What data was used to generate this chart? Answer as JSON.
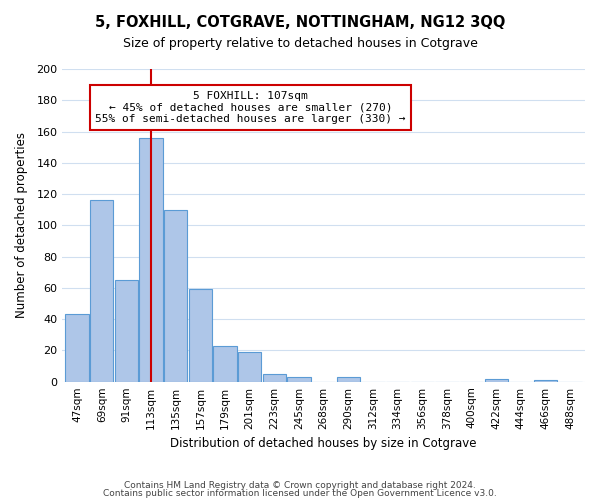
{
  "title": "5, FOXHILL, COTGRAVE, NOTTINGHAM, NG12 3QQ",
  "subtitle": "Size of property relative to detached houses in Cotgrave",
  "xlabel": "Distribution of detached houses by size in Cotgrave",
  "ylabel": "Number of detached properties",
  "bar_labels": [
    "47sqm",
    "69sqm",
    "91sqm",
    "113sqm",
    "135sqm",
    "157sqm",
    "179sqm",
    "201sqm",
    "223sqm",
    "245sqm",
    "268sqm",
    "290sqm",
    "312sqm",
    "334sqm",
    "356sqm",
    "378sqm",
    "400sqm",
    "422sqm",
    "444sqm",
    "466sqm",
    "488sqm"
  ],
  "bar_values": [
    43,
    116,
    65,
    156,
    110,
    59,
    23,
    19,
    5,
    3,
    0,
    3,
    0,
    0,
    0,
    0,
    0,
    2,
    0,
    1,
    0
  ],
  "bar_color": "#aec6e8",
  "bar_edge_color": "#5b9bd5",
  "ylim": [
    0,
    200
  ],
  "yticks": [
    0,
    20,
    40,
    60,
    80,
    100,
    120,
    140,
    160,
    180,
    200
  ],
  "vline_x": 3,
  "vline_color": "#cc0000",
  "annotation_title": "5 FOXHILL: 107sqm",
  "annotation_line1": "← 45% of detached houses are smaller (270)",
  "annotation_line2": "55% of semi-detached houses are larger (330) →",
  "annotation_box_color": "#ffffff",
  "annotation_box_edge": "#cc0000",
  "footer_line1": "Contains HM Land Registry data © Crown copyright and database right 2024.",
  "footer_line2": "Contains public sector information licensed under the Open Government Licence v3.0.",
  "background_color": "#ffffff",
  "grid_color": "#d0dff0"
}
